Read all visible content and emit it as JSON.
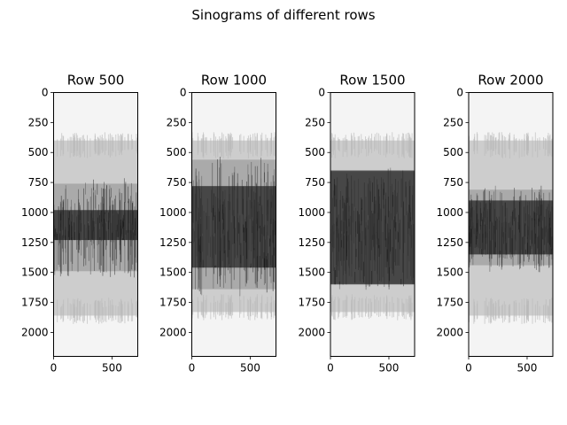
{
  "figure": {
    "suptitle": "Sinograms of different rows"
  },
  "chart_data": [
    {
      "type": "heatmap",
      "title": "Row 500",
      "xlim": [
        0,
        720
      ],
      "ylim": [
        2200,
        0
      ],
      "xticks": [
        0,
        500
      ],
      "yticks": [
        0,
        250,
        500,
        750,
        1000,
        1250,
        1500,
        1750,
        2000
      ],
      "colormap": "gray_r",
      "bright_band": [
        330,
        1930
      ],
      "dark_band": [
        700,
        1550
      ],
      "darkest_band": [
        980,
        1230
      ]
    },
    {
      "type": "heatmap",
      "title": "Row 1000",
      "xlim": [
        0,
        720
      ],
      "ylim": [
        2200,
        0
      ],
      "xticks": [
        0,
        500
      ],
      "yticks": [
        0,
        250,
        500,
        750,
        1000,
        1250,
        1500,
        1750,
        2000
      ],
      "colormap": "gray_r",
      "bright_band": [
        330,
        1900
      ],
      "dark_band": [
        500,
        1700
      ],
      "darkest_band": [
        780,
        1460
      ]
    },
    {
      "type": "heatmap",
      "title": "Row 1500",
      "xlim": [
        0,
        720
      ],
      "ylim": [
        2200,
        0
      ],
      "xticks": [
        0,
        500
      ],
      "yticks": [
        0,
        250,
        500,
        750,
        1000,
        1250,
        1500,
        1750,
        2000
      ],
      "colormap": "gray_r",
      "bright_band": [
        330,
        1900
      ],
      "dark_band": [
        600,
        1650
      ],
      "darkest_band": [
        650,
        1600
      ]
    },
    {
      "type": "heatmap",
      "title": "Row 2000",
      "xlim": [
        0,
        720
      ],
      "ylim": [
        2200,
        0
      ],
      "xticks": [
        0,
        500
      ],
      "yticks": [
        0,
        250,
        500,
        750,
        1000,
        1250,
        1500,
        1750,
        2000
      ],
      "colormap": "gray_r",
      "bright_band": [
        330,
        1930
      ],
      "dark_band": [
        750,
        1500
      ],
      "darkest_band": [
        900,
        1350
      ]
    }
  ]
}
